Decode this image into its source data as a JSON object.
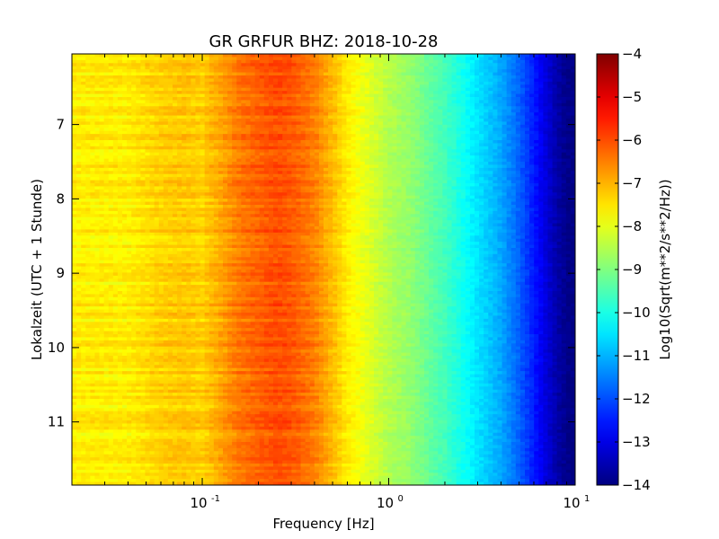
{
  "chart_data": {
    "type": "heatmap",
    "title": "GR GRFUR BHZ: 2018-10-28",
    "xlabel": "Frequency [Hz]",
    "ylabel": "Lokalzeit (UTC + 1 Stunde)",
    "x_scale": "log",
    "xlim": [
      0.02,
      10
    ],
    "ylim": [
      11.85,
      6.05
    ],
    "y_inverted": true,
    "x_ticks": [
      0.1,
      1,
      10
    ],
    "x_tick_labels": [
      [
        "10",
        "-1"
      ],
      [
        "10",
        "0"
      ],
      [
        "10",
        "1"
      ]
    ],
    "y_ticks": [
      7,
      8,
      9,
      10,
      11
    ],
    "y_tick_labels": [
      "7",
      "8",
      "9",
      "10",
      "11"
    ],
    "colorbar": {
      "label": "Log10(Sqrt(m**2/s**2/Hz))",
      "colormap": "jet",
      "range": [
        -14,
        -4
      ],
      "ticks": [
        -4,
        -5,
        -6,
        -7,
        -8,
        -9,
        -10,
        -11,
        -12,
        -13,
        -14
      ],
      "tick_labels": [
        "−4",
        "−5",
        "−6",
        "−7",
        "−8",
        "−9",
        "−10",
        "−11",
        "−12",
        "−13",
        "−14"
      ]
    },
    "spectrum_profile": {
      "frequency_hz": [
        0.02,
        0.04,
        0.06,
        0.08,
        0.1,
        0.13,
        0.16,
        0.2,
        0.25,
        0.3,
        0.4,
        0.5,
        0.6,
        0.8,
        1.0,
        1.3,
        1.6,
        2.0,
        2.5,
        3.0,
        4.0,
        5.0,
        6.0,
        7.0,
        8.0,
        9.0,
        10.0
      ],
      "log10_psd": [
        -7.6,
        -7.6,
        -7.3,
        -7.2,
        -7.3,
        -6.8,
        -6.4,
        -6.2,
        -6.0,
        -6.1,
        -6.5,
        -7.1,
        -7.6,
        -8.1,
        -8.5,
        -8.8,
        -9.2,
        -9.6,
        -10.1,
        -10.5,
        -11.1,
        -11.8,
        -12.5,
        -13.1,
        -13.6,
        -13.9,
        -14.0
      ]
    }
  }
}
